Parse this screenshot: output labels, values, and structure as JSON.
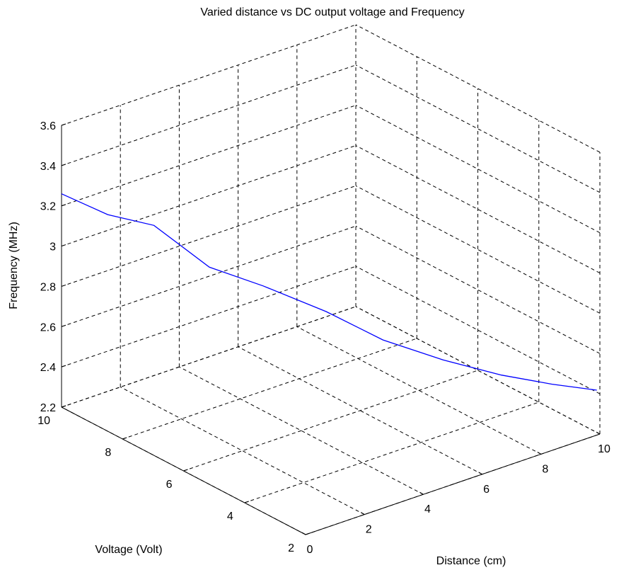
{
  "chart_data": {
    "type": "line",
    "title": "Varied distance vs DC output voltage and Frequency",
    "xlabel": "Distance (cm)",
    "ylabel": "Voltage (Volt)",
    "zlabel": "Frequency (MHz)",
    "xlim": [
      0,
      10
    ],
    "ylim": [
      2,
      10
    ],
    "zlim": [
      2.2,
      3.6
    ],
    "xticks": [
      {
        "v": 0,
        "label": "0"
      },
      {
        "v": 2,
        "label": "2"
      },
      {
        "v": 4,
        "label": "4"
      },
      {
        "v": 6,
        "label": "6"
      },
      {
        "v": 8,
        "label": "8"
      },
      {
        "v": 10,
        "label": "10"
      }
    ],
    "yticks": [
      {
        "v": 2,
        "label": "2"
      },
      {
        "v": 4,
        "label": "4"
      },
      {
        "v": 6,
        "label": "6"
      },
      {
        "v": 8,
        "label": "8"
      },
      {
        "v": 10,
        "label": "10"
      }
    ],
    "zticks": [
      {
        "v": 2.2,
        "label": "2.2"
      },
      {
        "v": 2.4,
        "label": "2.4"
      },
      {
        "v": 2.6,
        "label": "2.6"
      },
      {
        "v": 2.8,
        "label": "2.8"
      },
      {
        "v": 3.0,
        "label": "3"
      },
      {
        "v": 3.2,
        "label": "3.2"
      },
      {
        "v": 3.4,
        "label": "3.4"
      },
      {
        "v": 3.6,
        "label": "3.6"
      }
    ],
    "grid": true,
    "line_color": "#0000ff",
    "series": [
      {
        "x": [
          0,
          1,
          2,
          3,
          4,
          5,
          6,
          7,
          8,
          9,
          10
        ],
        "y": [
          10,
          9.45,
          8.9,
          8.05,
          7.25,
          6.15,
          5.25,
          4.25,
          3.3,
          2.6,
          2.1
        ],
        "z": [
          3.26,
          3.15,
          3.09,
          2.9,
          2.82,
          2.73,
          2.61,
          2.54,
          2.49,
          2.45,
          2.41
        ]
      }
    ]
  }
}
